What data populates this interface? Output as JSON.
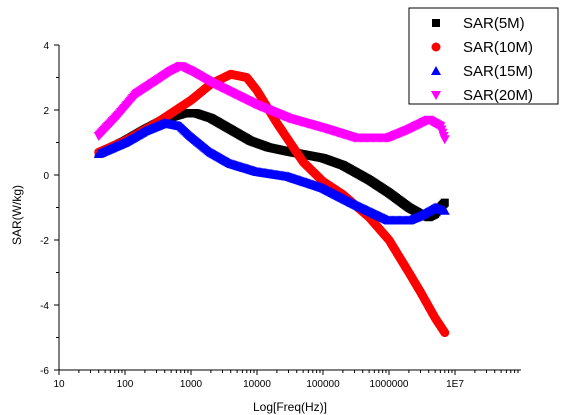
{
  "chart_data": {
    "type": "scatter",
    "xlabel": "Log[Freq(Hz)]",
    "ylabel": "SAR(W/kg)",
    "xscale": "log",
    "xlim": [
      10,
      100000000
    ],
    "ylim": [
      -6,
      4
    ],
    "x_ticks": [
      10,
      100,
      1000,
      10000,
      100000,
      1000000,
      10000000
    ],
    "x_tick_labels": [
      "10",
      "100",
      "1000",
      "10000",
      "100000",
      "1000000",
      "1E7"
    ],
    "y_ticks": [
      -6,
      -4,
      -2,
      0,
      2,
      4
    ],
    "y_tick_labels": [
      "-6",
      "-4",
      "-2",
      "0",
      "2",
      "4"
    ],
    "grid": false,
    "legend_position": "top-right",
    "series": [
      {
        "name": "SAR(5M)",
        "color": "#000000",
        "marker": "square",
        "x": [
          40,
          100,
          200,
          400,
          800,
          1200,
          2000,
          4000,
          8000,
          15000,
          30000,
          100000,
          200000,
          500000,
          1000000,
          2000000,
          3000000,
          4000000,
          5000000,
          6000000,
          7000000
        ],
        "y": [
          0.65,
          1.05,
          1.4,
          1.72,
          1.9,
          1.9,
          1.75,
          1.4,
          1.05,
          0.85,
          0.72,
          0.52,
          0.3,
          -0.15,
          -0.55,
          -1.0,
          -1.2,
          -1.3,
          -1.2,
          -1.0,
          -0.85
        ]
      },
      {
        "name": "SAR(10M)",
        "color": "#ff0000",
        "marker": "circle",
        "x": [
          40,
          100,
          300,
          1000,
          2000,
          4000,
          7000,
          10000,
          20000,
          50000,
          100000,
          200000,
          500000,
          1000000,
          2000000,
          3000000,
          5000000,
          7000000
        ],
        "y": [
          0.7,
          1.05,
          1.6,
          2.3,
          2.8,
          3.1,
          3.0,
          2.6,
          1.6,
          0.4,
          -0.2,
          -0.6,
          -1.3,
          -2.0,
          -3.0,
          -3.6,
          -4.4,
          -4.85
        ]
      },
      {
        "name": "SAR(15M)",
        "color": "#0000ff",
        "marker": "triangle",
        "x": [
          40,
          100,
          200,
          400,
          700,
          1000,
          2000,
          4000,
          10000,
          30000,
          100000,
          300000,
          1000000,
          2000000,
          3000000,
          5000000,
          7000000
        ],
        "y": [
          0.65,
          1.0,
          1.35,
          1.6,
          1.5,
          1.2,
          0.7,
          0.35,
          0.1,
          -0.05,
          -0.4,
          -0.9,
          -1.4,
          -1.4,
          -1.25,
          -1.0,
          -1.1
        ]
      },
      {
        "name": "SAR(20M)",
        "color": "#ff00ff",
        "marker": "triangle-down",
        "x": [
          40,
          80,
          150,
          300,
          500,
          700,
          1000,
          2000,
          5000,
          10000,
          30000,
          100000,
          300000,
          1000000,
          2000000,
          4000000,
          6000000,
          7000000
        ],
        "y": [
          1.2,
          1.85,
          2.5,
          2.9,
          3.2,
          3.35,
          3.2,
          2.85,
          2.45,
          2.15,
          1.75,
          1.45,
          1.15,
          1.15,
          1.4,
          1.7,
          1.5,
          1.1
        ]
      }
    ]
  }
}
